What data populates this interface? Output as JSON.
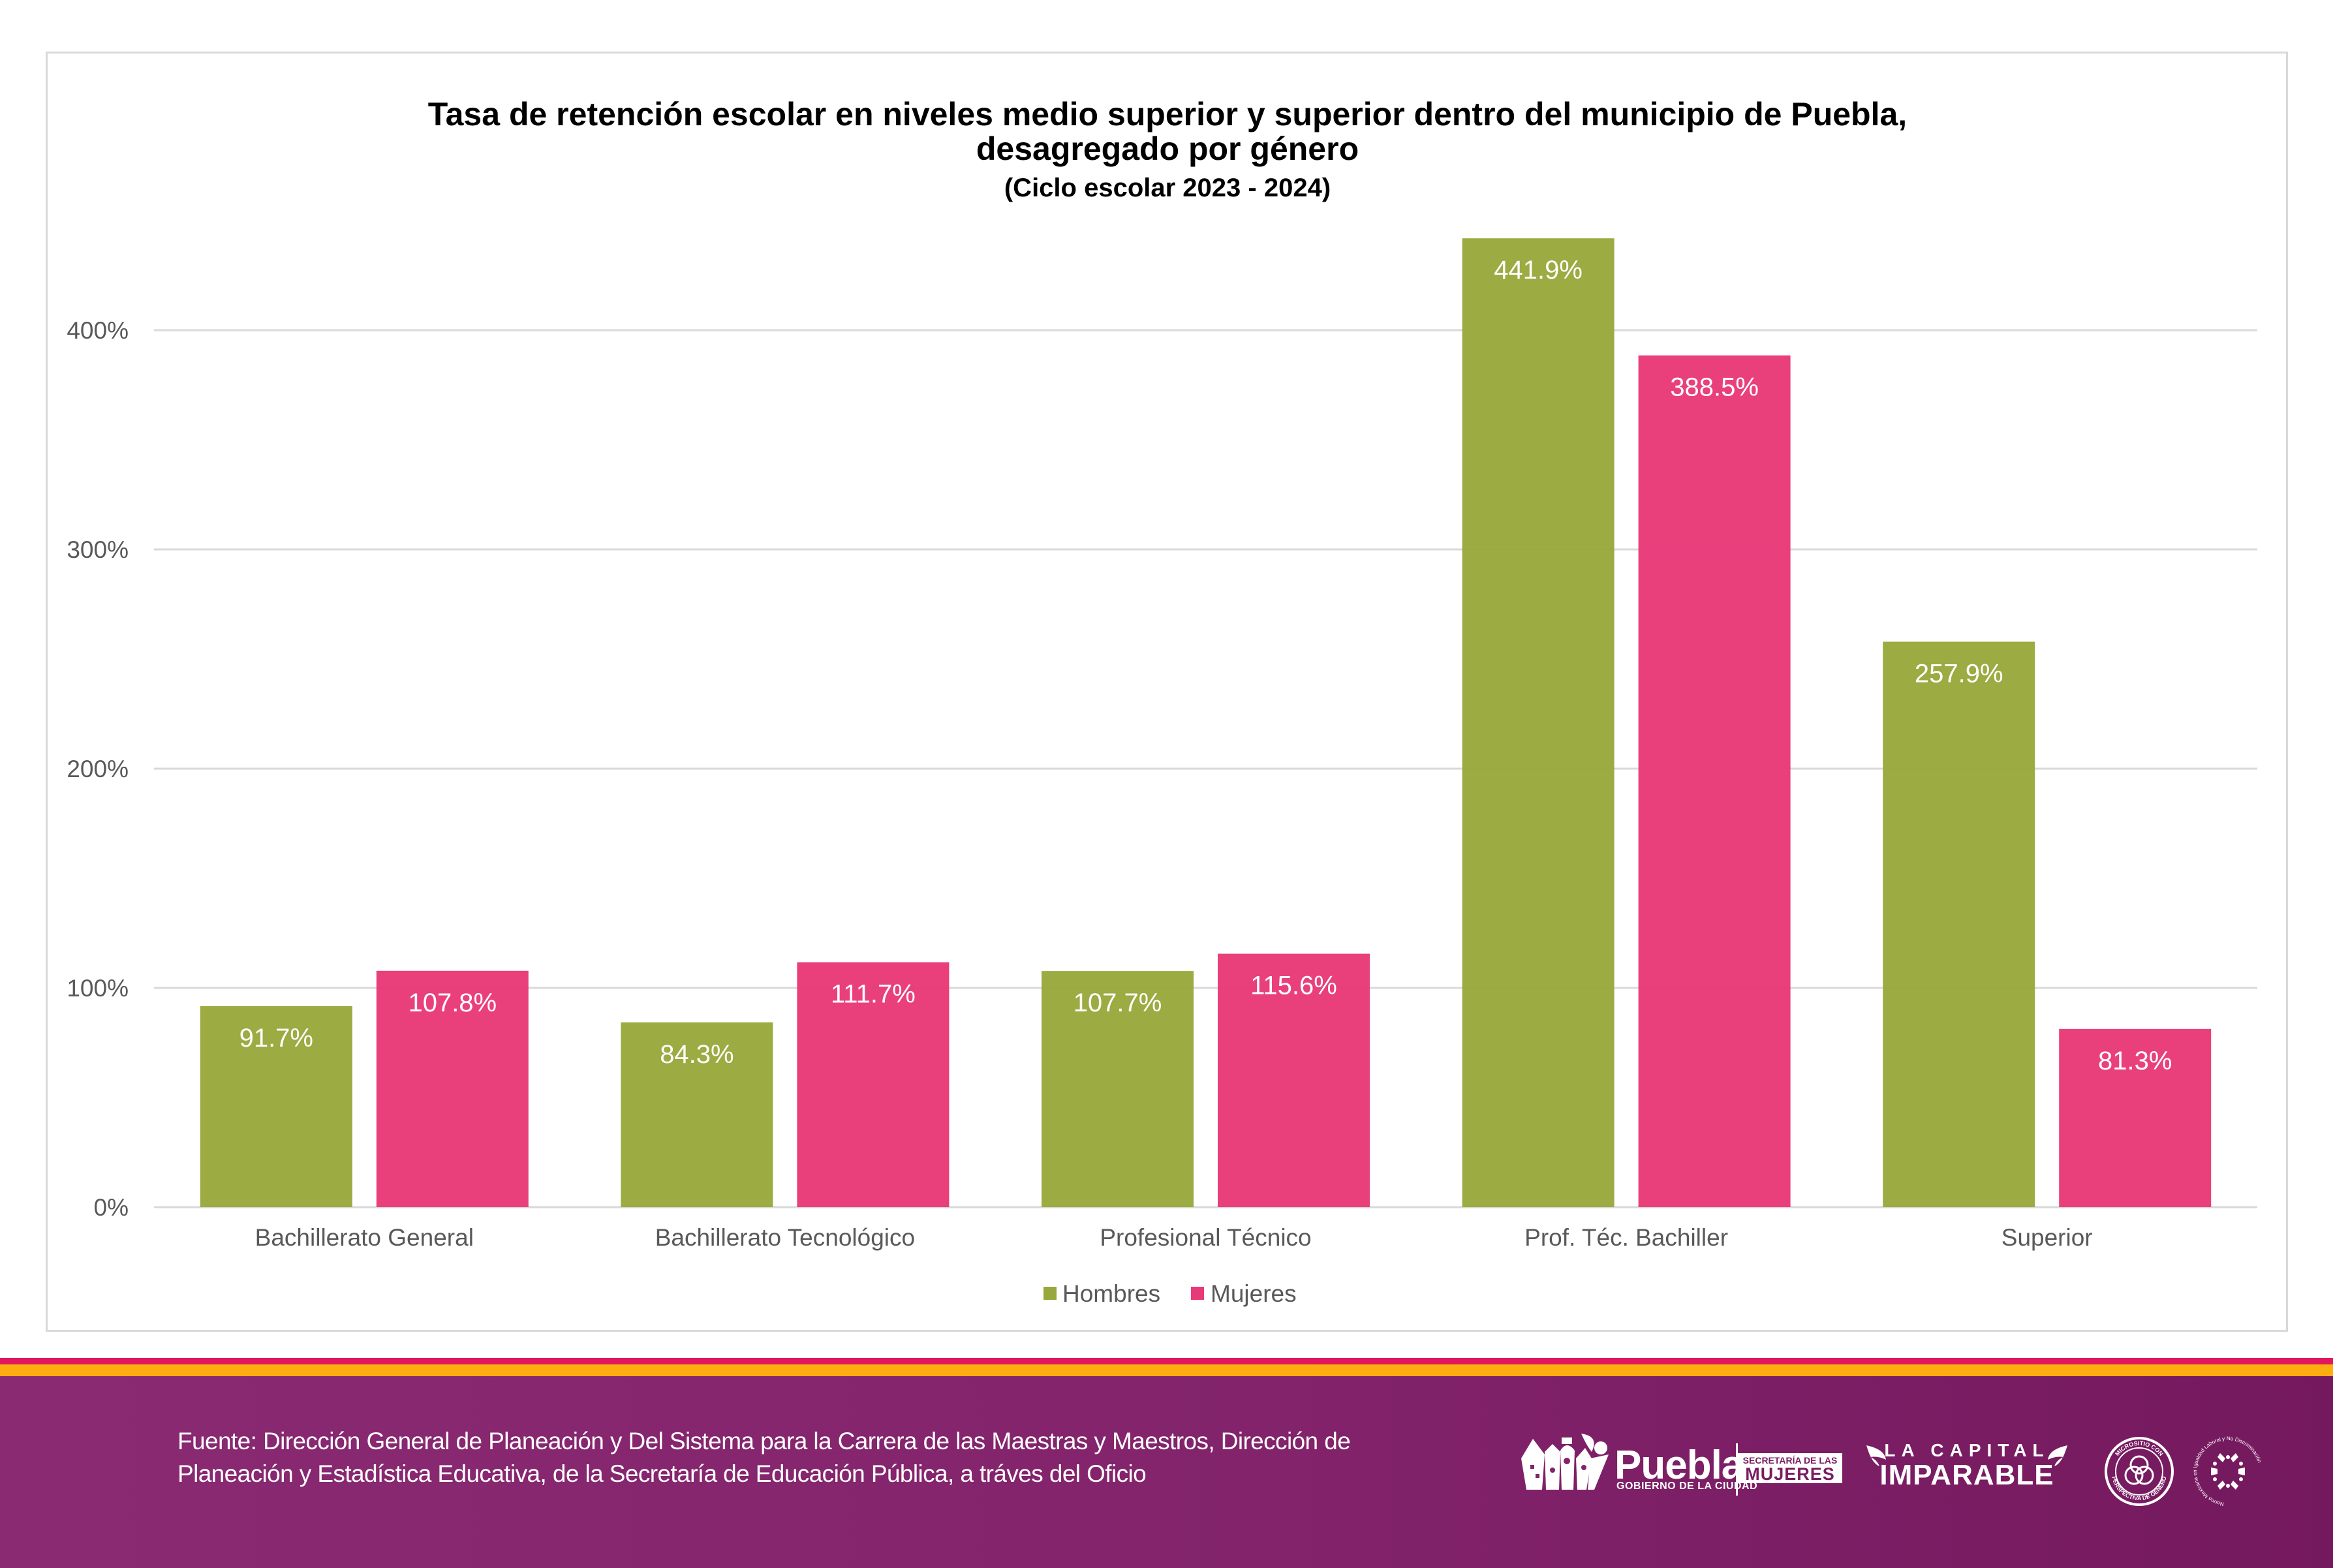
{
  "chart_data": {
    "type": "bar",
    "title": "Tasa de retención escolar en niveles medio superior y superior dentro del municipio de Puebla,",
    "title_line2": "desagregado por género",
    "subtitle": "(Ciclo escolar 2023 - 2024)",
    "xlabel": "",
    "ylabel": "",
    "categories": [
      "Bachillerato General",
      "Bachillerato Tecnológico",
      "Profesional Técnico",
      "Prof. Téc. Bachiller",
      "Superior"
    ],
    "series": [
      {
        "name": "Hombres",
        "color": "#99a83c",
        "values": [
          91.7,
          84.3,
          107.7,
          441.9,
          257.9
        ],
        "labels": [
          "91.7%",
          "84.3%",
          "107.7%",
          "441.9%",
          "257.9%"
        ]
      },
      {
        "name": "Mujeres",
        "color": "#e83a78",
        "values": [
          107.8,
          111.7,
          115.6,
          388.5,
          81.3
        ],
        "labels": [
          "107.8%",
          "111.7%",
          "115.6%",
          "388.5%",
          "81.3%"
        ]
      }
    ],
    "ylim": [
      0,
      450
    ],
    "yticks": [
      0,
      100,
      200,
      300,
      400
    ],
    "ytick_labels": [
      "0%",
      "100%",
      "200%",
      "300%",
      "400%"
    ],
    "grid": true,
    "legend_position": "bottom"
  },
  "footer": {
    "source": "Fuente: Dirección General de Planeación y Del Sistema para la Carrera de las Maestras y Maestros, Dirección de Planeación y Estadística Educativa, de la Secretaría de Educación Pública, a tráves del Oficio",
    "logos": {
      "puebla_word": "Puebla",
      "puebla_sub": "GOBIERNO DE LA CIUDAD",
      "mujeres_l1": "SECRETARÍA DE LAS",
      "mujeres_l2": "MUJERES",
      "capital_l1": "LA CAPITAL",
      "capital_l2": "IMPARABLE",
      "micrositio_top": "MICROSITIO CON",
      "micrositio_bottom": "PERSPECTIVA DE GÉNERO",
      "norma_text": "Norma Mexicana en Igualdad Laboral y No Discriminación"
    },
    "colors": {
      "stripe_pink": "#e01760",
      "stripe_orange": "#fdad10",
      "footer_purple": "#8a2a73"
    }
  }
}
